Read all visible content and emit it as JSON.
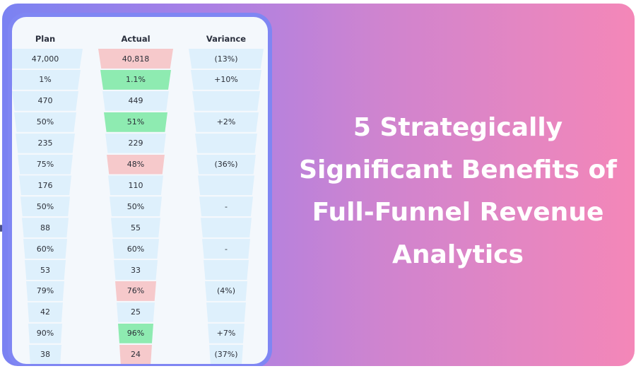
{
  "headline": {
    "lines": [
      "5 Strategically",
      "Significant Benefits of",
      "Full-Funnel Revenue",
      "Analytics"
    ]
  },
  "funnel_table": {
    "headers": {
      "plan": "Plan",
      "actual": "Actual",
      "variance": "Variance"
    },
    "rows": [
      {
        "plan": "47,000",
        "actual": "40,818",
        "variance": "(13%)",
        "actual_status": "negative"
      },
      {
        "plan": "1%",
        "actual": "1.1%",
        "variance": "+10%",
        "actual_status": "positive"
      },
      {
        "plan": "470",
        "actual": "449",
        "variance": "",
        "actual_status": "neutral"
      },
      {
        "plan": "50%",
        "actual": "51%",
        "variance": "+2%",
        "actual_status": "positive"
      },
      {
        "plan": "235",
        "actual": "229",
        "variance": "",
        "actual_status": "neutral"
      },
      {
        "plan": "75%",
        "actual": "48%",
        "variance": "(36%)",
        "actual_status": "negative"
      },
      {
        "plan": "176",
        "actual": "110",
        "variance": "",
        "actual_status": "neutral"
      },
      {
        "plan": "50%",
        "actual": "50%",
        "variance": "-",
        "actual_status": "neutral"
      },
      {
        "plan": "88",
        "actual": "55",
        "variance": "",
        "actual_status": "neutral"
      },
      {
        "plan": "60%",
        "actual": "60%",
        "variance": "-",
        "actual_status": "neutral"
      },
      {
        "plan": "53",
        "actual": "33",
        "variance": "",
        "actual_status": "neutral"
      },
      {
        "plan": "79%",
        "actual": "76%",
        "variance": "(4%)",
        "actual_status": "negative"
      },
      {
        "plan": "42",
        "actual": "25",
        "variance": "",
        "actual_status": "neutral"
      },
      {
        "plan": "90%",
        "actual": "96%",
        "variance": "+7%",
        "actual_status": "positive"
      },
      {
        "plan": "38",
        "actual": "24",
        "variance": "(37%)",
        "actual_status": "negative"
      }
    ]
  },
  "colors": {
    "gradient_start": "#7a82f2",
    "gradient_end": "#f487b8",
    "panel_border": "#7f86f3",
    "cell_neutral": "#def0fc",
    "cell_positive": "#8eebb1",
    "cell_negative": "#f6c9cb",
    "text": "#2b2f38",
    "headline_text": "#ffffff"
  }
}
